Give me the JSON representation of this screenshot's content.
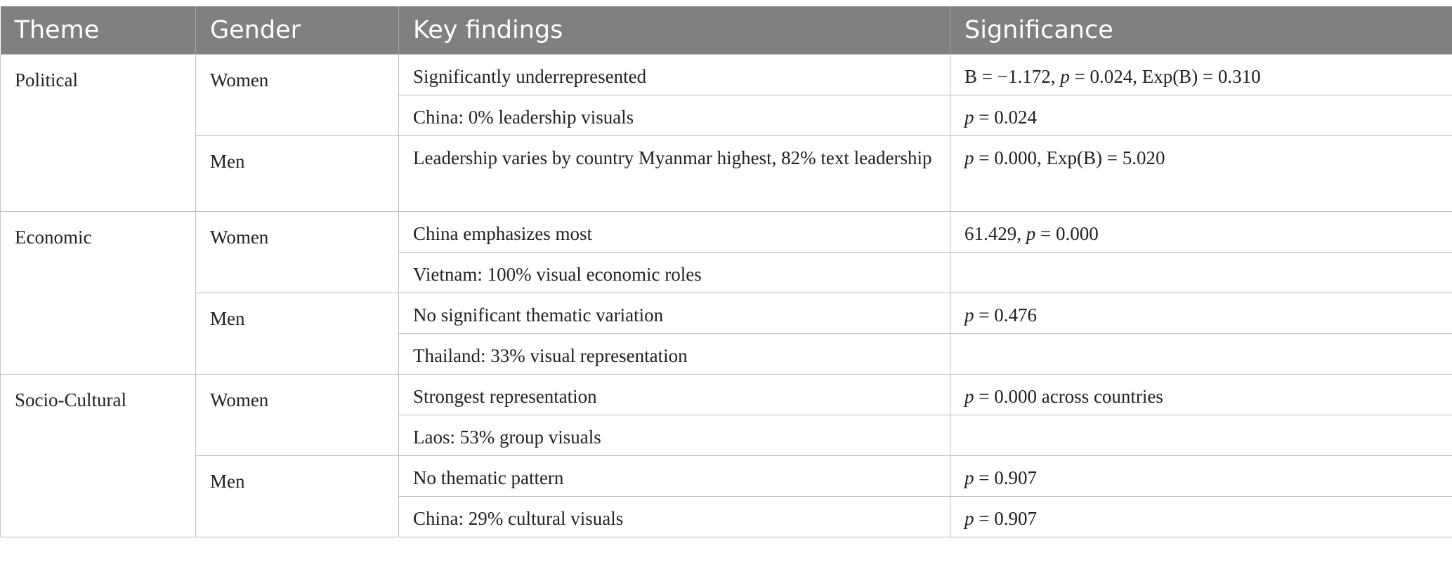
{
  "headers": {
    "theme": "Theme",
    "gender": "Gender",
    "key_findings": "Key findings",
    "significance": "Significance"
  },
  "rows": {
    "political": {
      "theme": "Political",
      "women": {
        "gender": "Women",
        "r1": {
          "finding": "Significantly underrepresented",
          "sig_pre": "B = −1.172, ",
          "sig_p": "p",
          "sig_post": " = 0.024, Exp(B) = 0.310"
        },
        "r2": {
          "finding": "China: 0% leadership visuals",
          "sig_p": "p",
          "sig_post": " = 0.024"
        }
      },
      "men": {
        "gender": "Men",
        "r1": {
          "finding": "Leadership varies by country Myanmar highest, 82% text leadership",
          "sig_p": "p",
          "sig_post": " = 0.000, Exp(B) = 5.020"
        }
      }
    },
    "economic": {
      "theme": "Economic",
      "women": {
        "gender": "Women",
        "r1": {
          "finding": "China emphasizes most",
          "sig_pre": "61.429, ",
          "sig_p": "p",
          "sig_post": " = 0.000"
        },
        "r2": {
          "finding": "Vietnam: 100% visual economic roles"
        }
      },
      "men": {
        "gender": "Men",
        "r1": {
          "finding": "No significant thematic variation",
          "sig_p": "p",
          "sig_post": " = 0.476"
        },
        "r2": {
          "finding": "Thailand: 33% visual representation"
        }
      }
    },
    "socio_cultural": {
      "theme": "Socio-Cultural",
      "women": {
        "gender": "Women",
        "r1": {
          "finding": "Strongest representation",
          "sig_p": "p",
          "sig_post": " = 0.000 across countries"
        },
        "r2": {
          "finding": "Laos: 53% group visuals"
        }
      },
      "men": {
        "gender": "Men",
        "r1": {
          "finding": "No thematic pattern",
          "sig_p": "p",
          "sig_post": " = 0.907"
        },
        "r2": {
          "finding": "China: 29% cultural visuals",
          "sig_p": "p",
          "sig_post": " = 0.907"
        }
      }
    }
  }
}
